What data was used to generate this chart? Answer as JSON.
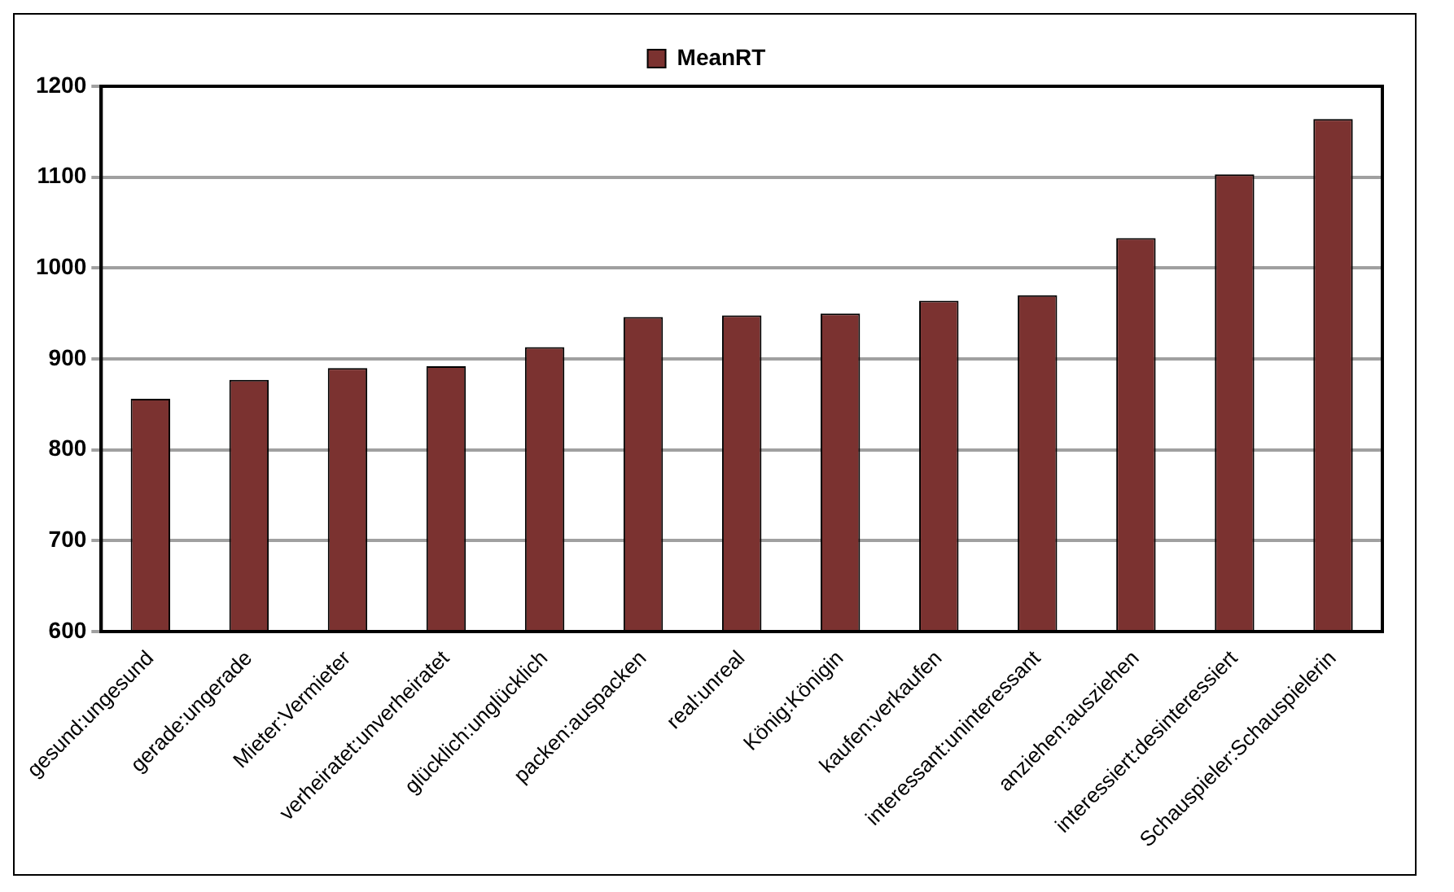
{
  "chart_data": {
    "type": "bar",
    "categories": [
      "gesund:ungesund",
      "gerade:ungerade",
      "Mieter:Vermieter",
      "verheiratet:unverheiratet",
      "glücklich:unglücklich",
      "packen:auspacken",
      "real:unreal",
      "König:Königin",
      "kaufen:verkaufen",
      "interessant:uninteressant",
      "anziehen:ausziehen",
      "interessiert:desinteressiert",
      "Schauspieler:Schauspielerin"
    ],
    "series": [
      {
        "name": "MeanRT",
        "color": "#7b3230",
        "values": [
          856,
          877,
          890,
          892,
          913,
          946,
          948,
          950,
          964,
          970,
          1033,
          1103,
          1164
        ]
      }
    ],
    "ylim": [
      600,
      1200
    ],
    "yticks": [
      600,
      700,
      800,
      900,
      1000,
      1100,
      1200
    ],
    "grid": "y",
    "legend": "top"
  }
}
